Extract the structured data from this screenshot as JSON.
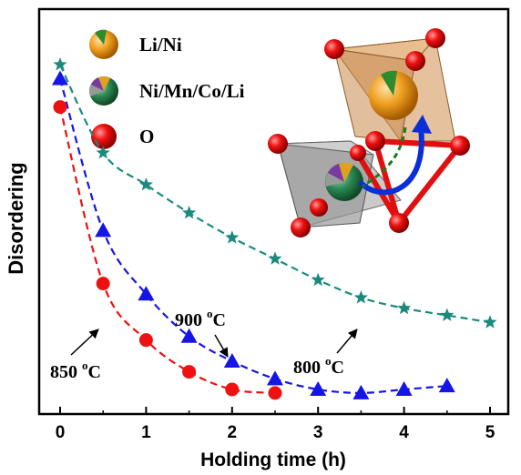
{
  "chart_data": {
    "type": "scatter",
    "xlabel": "Holding time (h)",
    "ylabel": "Disordering",
    "xlim": [
      -0.2,
      5.2
    ],
    "ylim": [
      0,
      1
    ],
    "x_ticks": [
      "0",
      "1",
      "2",
      "3",
      "4",
      "5"
    ],
    "y_ticks_labeled": false,
    "grid": false,
    "series": [
      {
        "name": "800 °C",
        "label_main": "800 ",
        "label_sup": "o",
        "label_unit": "C",
        "marker": "star",
        "color": "#1a8a7e",
        "line_style": "dashed",
        "x": [
          0,
          0.5,
          1,
          1.5,
          2,
          2.5,
          3,
          3.5,
          4,
          4.5,
          5
        ],
        "y": [
          0.92,
          0.67,
          0.58,
          0.5,
          0.43,
          0.37,
          0.31,
          0.26,
          0.23,
          0.21,
          0.19
        ]
      },
      {
        "name": "900 °C",
        "label_main": "900 ",
        "label_sup": "o",
        "label_unit": "C",
        "marker": "triangle",
        "color": "#1515e6",
        "line_style": "dashed",
        "x": [
          0,
          0.5,
          1,
          1.5,
          2,
          2.5,
          3,
          3.5,
          4,
          4.5
        ],
        "y": [
          0.88,
          0.45,
          0.27,
          0.15,
          0.08,
          0.03,
          0.0,
          -0.01,
          0.0,
          0.01
        ]
      },
      {
        "name": "850 °C",
        "label_main": "850 ",
        "label_sup": "o",
        "label_unit": "C",
        "marker": "circle",
        "color": "#ee1111",
        "line_style": "dashed",
        "x": [
          0,
          0.5,
          1,
          1.5,
          2,
          2.5
        ],
        "y": [
          0.8,
          0.3,
          0.14,
          0.05,
          0.0,
          -0.01
        ]
      }
    ]
  },
  "inset": {
    "legend": [
      {
        "label": "Li/Ni",
        "icon": "orange-sphere-with-green-wedge"
      },
      {
        "label": "Ni/Mn/Co/Li",
        "icon": "multicolor-pie-sphere"
      },
      {
        "label": "O",
        "icon": "red-sphere"
      }
    ],
    "colors": {
      "octahedron_top": "#d9a06a",
      "octahedron_bottom": "#9e9e9e",
      "tetrahedron_edges": "#e01010",
      "oxygen": "#e01010",
      "arrow_blue": "#0b2fd6",
      "arrow_green": "#1b7a1b"
    }
  }
}
